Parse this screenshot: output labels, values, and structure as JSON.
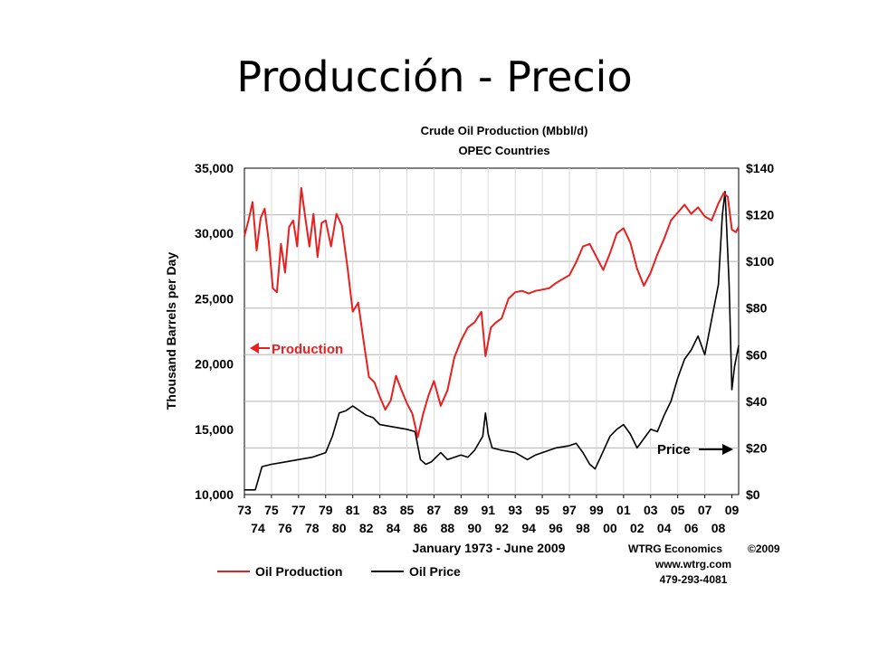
{
  "slide": {
    "title": "Producción - Precio"
  },
  "chart_data": {
    "type": "line",
    "title": "Crude Oil Production (Mbbl/d)",
    "subtitle": "OPEC Countries",
    "xlabel": "January 1973 - June 2009",
    "ylabel": "Thousand Barrels per Day",
    "xlim": [
      1973,
      2009.5
    ],
    "ylim": [
      10000,
      35000
    ],
    "y2lim": [
      0,
      140
    ],
    "grid": true,
    "x_ticks_upper": [
      "73",
      "75",
      "77",
      "79",
      "81",
      "83",
      "85",
      "87",
      "89",
      "91",
      "93",
      "95",
      "97",
      "99",
      "01",
      "03",
      "05",
      "07",
      "09"
    ],
    "x_ticks_lower": [
      "74",
      "76",
      "78",
      "80",
      "82",
      "84",
      "86",
      "88",
      "90",
      "92",
      "94",
      "96",
      "98",
      "00",
      "02",
      "04",
      "06",
      "08"
    ],
    "y_ticks": [
      "10,000",
      "15,000",
      "20,000",
      "25,000",
      "30,000",
      "35,000"
    ],
    "y2_ticks": [
      "$0",
      "$20",
      "$40",
      "$60",
      "$80",
      "$100",
      "$120",
      "$140"
    ],
    "legend": [
      {
        "name": "Oil Production",
        "color": "#e8201f"
      },
      {
        "name": "Oil Price",
        "color": "#000000"
      }
    ],
    "annotations": {
      "production": "Production",
      "price": "Price"
    },
    "credits": [
      "WTRG Economics",
      "©2009",
      "www.wtrg.com",
      "479-293-4081"
    ],
    "series": [
      {
        "name": "Oil Production",
        "axis": "left",
        "color": "#e8201f",
        "x": [
          1973.0,
          1973.3,
          1973.6,
          1973.9,
          1974.2,
          1974.5,
          1974.8,
          1975.1,
          1975.4,
          1975.7,
          1976.0,
          1976.3,
          1976.6,
          1976.9,
          1977.2,
          1977.5,
          1977.8,
          1978.1,
          1978.4,
          1978.7,
          1979.0,
          1979.4,
          1979.8,
          1980.2,
          1980.6,
          1981.0,
          1981.4,
          1981.8,
          1982.2,
          1982.6,
          1983.0,
          1983.4,
          1983.8,
          1984.2,
          1984.6,
          1985.0,
          1985.4,
          1985.8,
          1986.2,
          1986.6,
          1987.0,
          1987.5,
          1988.0,
          1988.5,
          1989.0,
          1989.5,
          1990.0,
          1990.5,
          1990.8,
          1991.2,
          1991.6,
          1992.0,
          1992.5,
          1993.0,
          1993.5,
          1994.0,
          1994.5,
          1995.0,
          1995.5,
          1996.0,
          1996.5,
          1997.0,
          1997.5,
          1998.0,
          1998.5,
          1999.0,
          1999.5,
          2000.0,
          2000.5,
          2001.0,
          2001.5,
          2002.0,
          2002.5,
          2003.0,
          2003.5,
          2004.0,
          2004.5,
          2005.0,
          2005.5,
          2006.0,
          2006.5,
          2007.0,
          2007.5,
          2008.0,
          2008.4,
          2008.7,
          2009.0,
          2009.3,
          2009.5
        ],
        "values": [
          29800,
          31000,
          32400,
          28700,
          31200,
          31900,
          29400,
          25800,
          25500,
          29200,
          27000,
          30500,
          31000,
          29000,
          33500,
          31200,
          29000,
          31500,
          28200,
          30800,
          31000,
          29000,
          31500,
          30600,
          27500,
          24000,
          24700,
          21800,
          19000,
          18600,
          17500,
          16500,
          17200,
          19100,
          18000,
          17000,
          16200,
          14400,
          16200,
          17600,
          18700,
          16800,
          18000,
          20500,
          21800,
          22800,
          23200,
          24000,
          20600,
          22800,
          23200,
          23500,
          25000,
          25500,
          25600,
          25400,
          25600,
          25700,
          25800,
          26200,
          26500,
          26800,
          27800,
          29000,
          29200,
          28200,
          27200,
          28500,
          30000,
          30400,
          29300,
          27300,
          26000,
          27000,
          28400,
          29600,
          31000,
          31600,
          32200,
          31500,
          32000,
          31300,
          31000,
          32300,
          33100,
          32800,
          30300,
          30100,
          30500
        ]
      },
      {
        "name": "Oil Price",
        "axis": "right",
        "color": "#000000",
        "x": [
          1973.0,
          1973.8,
          1974.0,
          1974.3,
          1975.0,
          1976.0,
          1977.0,
          1978.0,
          1979.0,
          1979.5,
          1980.0,
          1980.5,
          1981.0,
          1981.5,
          1982.0,
          1982.5,
          1983.0,
          1984.0,
          1985.0,
          1985.6,
          1986.0,
          1986.4,
          1986.8,
          1987.5,
          1988.0,
          1988.5,
          1989.0,
          1989.5,
          1990.0,
          1990.6,
          1990.8,
          1991.0,
          1991.3,
          1992.0,
          1993.0,
          1993.9,
          1994.5,
          1995.0,
          1996.0,
          1997.0,
          1997.5,
          1998.0,
          1998.5,
          1998.9,
          1999.3,
          2000.0,
          2000.5,
          2001.0,
          2001.5,
          2002.0,
          2002.5,
          2003.0,
          2003.5,
          2004.0,
          2004.5,
          2005.0,
          2005.5,
          2006.0,
          2006.5,
          2007.0,
          2007.5,
          2008.0,
          2008.3,
          2008.5,
          2008.8,
          2009.0,
          2009.2,
          2009.5
        ],
        "values": [
          2,
          2,
          6,
          12,
          13,
          14,
          15,
          16,
          18,
          25,
          35,
          36,
          38,
          36,
          34,
          33,
          30,
          29,
          28,
          27,
          15,
          13,
          14,
          18,
          15,
          16,
          17,
          16,
          19,
          25,
          35,
          26,
          20,
          19,
          18,
          15,
          17,
          18,
          20,
          21,
          22,
          18,
          13,
          11,
          16,
          25,
          28,
          30,
          26,
          20,
          24,
          28,
          27,
          34,
          40,
          50,
          58,
          62,
          68,
          60,
          75,
          90,
          120,
          130,
          90,
          45,
          55,
          64
        ]
      }
    ]
  }
}
